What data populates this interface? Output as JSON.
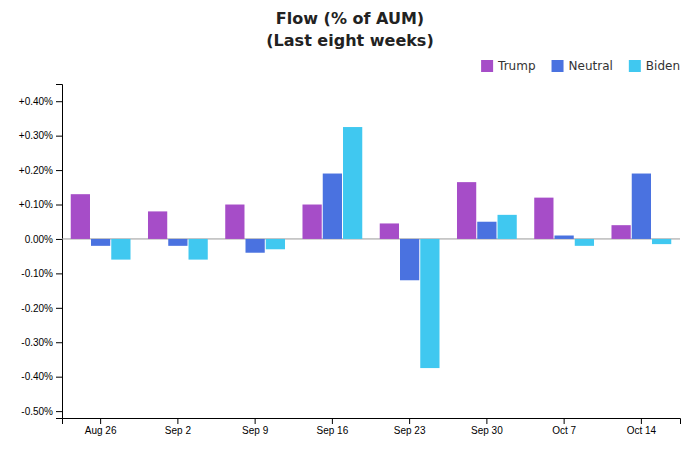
{
  "chart_data": {
    "type": "bar",
    "title": "Flow (% of AUM)",
    "subtitle": "(Last eight weeks)",
    "categories": [
      "Aug 26",
      "Sep 2",
      "Sep 9",
      "Sep 16",
      "Sep 23",
      "Sep 30",
      "Oct 7",
      "Oct 14"
    ],
    "series": [
      {
        "name": "Trump",
        "color": "#a64dc8",
        "values": [
          0.13,
          0.08,
          0.1,
          0.1,
          0.045,
          0.165,
          0.12,
          0.04
        ]
      },
      {
        "name": "Neutral",
        "color": "#4a72e0",
        "values": [
          -0.02,
          -0.02,
          -0.04,
          0.19,
          -0.12,
          0.05,
          0.01,
          0.19
        ]
      },
      {
        "name": "Biden",
        "color": "#40c8f0",
        "values": [
          -0.06,
          -0.06,
          -0.03,
          0.325,
          -0.375,
          0.07,
          -0.02,
          -0.015
        ]
      }
    ],
    "ylim": [
      -0.52,
      0.45
    ],
    "yticks": [
      {
        "value": -0.5,
        "label": "-0.50%"
      },
      {
        "value": -0.4,
        "label": "-0.40%"
      },
      {
        "value": -0.3,
        "label": "-0.30%"
      },
      {
        "value": -0.2,
        "label": "-0.20%"
      },
      {
        "value": -0.1,
        "label": "-0.10%"
      },
      {
        "value": 0,
        "label": "0.00%"
      },
      {
        "value": 0.1,
        "label": "+0.10%"
      },
      {
        "value": 0.2,
        "label": "+0.20%"
      },
      {
        "value": 0.3,
        "label": "+0.30%"
      },
      {
        "value": 0.4,
        "label": "+0.40%"
      }
    ],
    "grid": false,
    "legend": "upper right"
  }
}
